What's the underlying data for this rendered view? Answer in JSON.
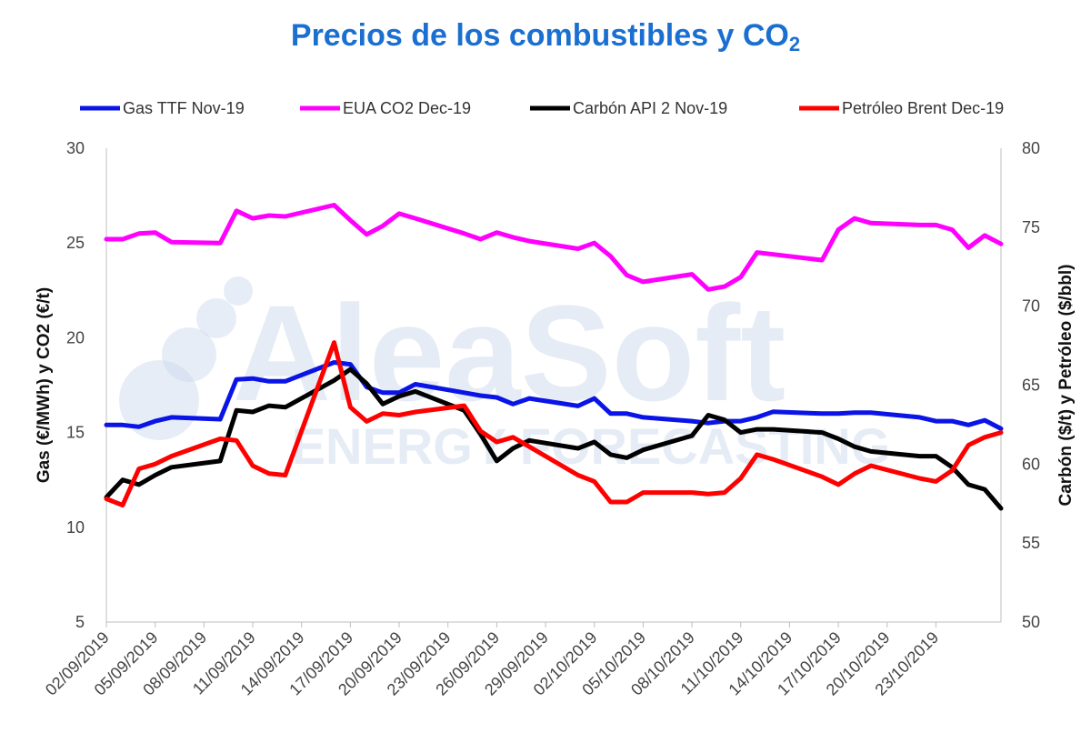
{
  "chart_data": {
    "type": "line",
    "title_main": "Precios de los combustibles y CO",
    "title_sub": "2",
    "ylabel_left": "Gas (€/MWh) y CO2 (€/t)",
    "ylabel_right": "Carbón ($/t) y Petróleo ($/bbl)",
    "ylim_left": [
      5,
      30
    ],
    "ylim_right": [
      50,
      80
    ],
    "yticks_left": [
      "5",
      "10",
      "15",
      "20",
      "25",
      "30"
    ],
    "yticks_right": [
      "50",
      "55",
      "60",
      "65",
      "70",
      "75",
      "80"
    ],
    "grid": false,
    "legend_position": "top",
    "x_start": "2019-09-02",
    "x_end": "2019-10-27",
    "xticks": [
      "02/09/2019",
      "05/09/2019",
      "08/09/2019",
      "11/09/2019",
      "14/09/2019",
      "17/09/2019",
      "20/09/2019",
      "23/09/2019",
      "26/09/2019",
      "29/09/2019",
      "02/10/2019",
      "05/10/2019",
      "08/10/2019",
      "11/10/2019",
      "14/10/2019",
      "17/10/2019",
      "20/10/2019",
      "23/10/2019"
    ],
    "series": [
      {
        "name": "Gas TTF Nov-19",
        "axis": "left",
        "color": "#0a14e6",
        "points": [
          [
            "2019-09-02",
            15.4
          ],
          [
            "2019-09-03",
            15.4
          ],
          [
            "2019-09-04",
            15.3
          ],
          [
            "2019-09-05",
            15.6
          ],
          [
            "2019-09-06",
            15.8
          ],
          [
            "2019-09-09",
            15.7
          ],
          [
            "2019-09-10",
            17.8
          ],
          [
            "2019-09-11",
            17.85
          ],
          [
            "2019-09-12",
            17.7
          ],
          [
            "2019-09-13",
            17.7
          ],
          [
            "2019-09-16",
            18.7
          ],
          [
            "2019-09-17",
            18.6
          ],
          [
            "2019-09-18",
            17.4
          ],
          [
            "2019-09-19",
            17.1
          ],
          [
            "2019-09-20",
            17.1
          ],
          [
            "2019-09-21",
            17.55
          ],
          [
            "2019-09-24",
            17.1
          ],
          [
            "2019-09-25",
            16.95
          ],
          [
            "2019-09-26",
            16.85
          ],
          [
            "2019-09-27",
            16.5
          ],
          [
            "2019-09-28",
            16.8
          ],
          [
            "2019-10-01",
            16.4
          ],
          [
            "2019-10-02",
            16.8
          ],
          [
            "2019-10-03",
            16.0
          ],
          [
            "2019-10-04",
            16.0
          ],
          [
            "2019-10-05",
            15.8
          ],
          [
            "2019-10-08",
            15.6
          ],
          [
            "2019-10-09",
            15.5
          ],
          [
            "2019-10-10",
            15.6
          ],
          [
            "2019-10-11",
            15.6
          ],
          [
            "2019-10-12",
            15.8
          ],
          [
            "2019-10-13",
            16.1
          ],
          [
            "2019-10-16",
            16.0
          ],
          [
            "2019-10-17",
            16.0
          ],
          [
            "2019-10-18",
            16.05
          ],
          [
            "2019-10-19",
            16.05
          ],
          [
            "2019-10-22",
            15.8
          ],
          [
            "2019-10-23",
            15.6
          ],
          [
            "2019-10-24",
            15.6
          ],
          [
            "2019-10-25",
            15.4
          ],
          [
            "2019-10-26",
            15.65
          ],
          [
            "2019-10-27",
            15.2
          ]
        ]
      },
      {
        "name": "EUA CO2 Dec-19",
        "axis": "left",
        "color": "#ff00ff",
        "points": [
          [
            "2019-09-02",
            25.2
          ],
          [
            "2019-09-03",
            25.2
          ],
          [
            "2019-09-04",
            25.5
          ],
          [
            "2019-09-05",
            25.55
          ],
          [
            "2019-09-06",
            25.05
          ],
          [
            "2019-09-09",
            25.0
          ],
          [
            "2019-09-10",
            26.7
          ],
          [
            "2019-09-11",
            26.3
          ],
          [
            "2019-09-12",
            26.45
          ],
          [
            "2019-09-13",
            26.4
          ],
          [
            "2019-09-16",
            27.0
          ],
          [
            "2019-09-17",
            26.2
          ],
          [
            "2019-09-18",
            25.45
          ],
          [
            "2019-09-19",
            25.9
          ],
          [
            "2019-09-20",
            26.55
          ],
          [
            "2019-09-21",
            26.3
          ],
          [
            "2019-09-24",
            25.5
          ],
          [
            "2019-09-25",
            25.2
          ],
          [
            "2019-09-26",
            25.55
          ],
          [
            "2019-09-27",
            25.3
          ],
          [
            "2019-09-28",
            25.1
          ],
          [
            "2019-10-01",
            24.7
          ],
          [
            "2019-10-02",
            25.0
          ],
          [
            "2019-10-03",
            24.3
          ],
          [
            "2019-10-04",
            23.3
          ],
          [
            "2019-10-05",
            22.95
          ],
          [
            "2019-10-08",
            23.35
          ],
          [
            "2019-10-09",
            22.55
          ],
          [
            "2019-10-10",
            22.7
          ],
          [
            "2019-10-11",
            23.2
          ],
          [
            "2019-10-12",
            24.5
          ],
          [
            "2019-10-13",
            24.4
          ],
          [
            "2019-10-16",
            24.1
          ],
          [
            "2019-10-17",
            25.7
          ],
          [
            "2019-10-18",
            26.3
          ],
          [
            "2019-10-19",
            26.05
          ],
          [
            "2019-10-22",
            25.95
          ],
          [
            "2019-10-23",
            25.95
          ],
          [
            "2019-10-24",
            25.7
          ],
          [
            "2019-10-25",
            24.75
          ],
          [
            "2019-10-26",
            25.4
          ],
          [
            "2019-10-27",
            24.95
          ]
        ]
      },
      {
        "name": "Carbón API 2 Nov-19",
        "axis": "right",
        "color": "#000000",
        "points": [
          [
            "2019-09-02",
            57.9
          ],
          [
            "2019-09-03",
            59.0
          ],
          [
            "2019-09-04",
            58.7
          ],
          [
            "2019-09-05",
            59.3
          ],
          [
            "2019-09-06",
            59.8
          ],
          [
            "2019-09-09",
            60.2
          ],
          [
            "2019-09-10",
            63.4
          ],
          [
            "2019-09-11",
            63.3
          ],
          [
            "2019-09-12",
            63.7
          ],
          [
            "2019-09-13",
            63.6
          ],
          [
            "2019-09-16",
            65.3
          ],
          [
            "2019-09-17",
            66.0
          ],
          [
            "2019-09-18",
            65.1
          ],
          [
            "2019-09-19",
            63.8
          ],
          [
            "2019-09-20",
            64.3
          ],
          [
            "2019-09-21",
            64.6
          ],
          [
            "2019-09-24",
            63.4
          ],
          [
            "2019-09-25",
            61.9
          ],
          [
            "2019-09-26",
            60.2
          ],
          [
            "2019-09-27",
            61.0
          ],
          [
            "2019-09-28",
            61.5
          ],
          [
            "2019-10-01",
            61.0
          ],
          [
            "2019-10-02",
            61.4
          ],
          [
            "2019-10-03",
            60.6
          ],
          [
            "2019-10-04",
            60.4
          ],
          [
            "2019-10-05",
            60.9
          ],
          [
            "2019-10-08",
            61.8
          ],
          [
            "2019-10-09",
            63.1
          ],
          [
            "2019-10-10",
            62.8
          ],
          [
            "2019-10-11",
            62.0
          ],
          [
            "2019-10-12",
            62.2
          ],
          [
            "2019-10-13",
            62.2
          ],
          [
            "2019-10-16",
            62.0
          ],
          [
            "2019-10-17",
            61.6
          ],
          [
            "2019-10-18",
            61.1
          ],
          [
            "2019-10-19",
            60.8
          ],
          [
            "2019-10-22",
            60.5
          ],
          [
            "2019-10-23",
            60.5
          ],
          [
            "2019-10-24",
            59.8
          ],
          [
            "2019-10-25",
            58.7
          ],
          [
            "2019-10-26",
            58.4
          ],
          [
            "2019-10-27",
            57.2
          ]
        ]
      },
      {
        "name": "Petróleo Brent Dec-19",
        "axis": "right",
        "color": "#ff0000",
        "points": [
          [
            "2019-09-02",
            57.8
          ],
          [
            "2019-09-03",
            57.4
          ],
          [
            "2019-09-04",
            59.7
          ],
          [
            "2019-09-05",
            60.0
          ],
          [
            "2019-09-06",
            60.5
          ],
          [
            "2019-09-09",
            61.6
          ],
          [
            "2019-09-10",
            61.5
          ],
          [
            "2019-09-11",
            59.9
          ],
          [
            "2019-09-12",
            59.4
          ],
          [
            "2019-09-13",
            59.3
          ],
          [
            "2019-09-16",
            67.7
          ],
          [
            "2019-09-17",
            63.6
          ],
          [
            "2019-09-18",
            62.7
          ],
          [
            "2019-09-19",
            63.2
          ],
          [
            "2019-09-20",
            63.1
          ],
          [
            "2019-09-21",
            63.3
          ],
          [
            "2019-09-24",
            63.7
          ],
          [
            "2019-09-25",
            62.1
          ],
          [
            "2019-09-26",
            61.4
          ],
          [
            "2019-09-27",
            61.7
          ],
          [
            "2019-09-28",
            61.1
          ],
          [
            "2019-10-01",
            59.3
          ],
          [
            "2019-10-02",
            58.9
          ],
          [
            "2019-10-03",
            57.6
          ],
          [
            "2019-10-04",
            57.6
          ],
          [
            "2019-10-05",
            58.2
          ],
          [
            "2019-10-08",
            58.2
          ],
          [
            "2019-10-09",
            58.1
          ],
          [
            "2019-10-10",
            58.2
          ],
          [
            "2019-10-11",
            59.1
          ],
          [
            "2019-10-12",
            60.6
          ],
          [
            "2019-10-13",
            60.3
          ],
          [
            "2019-10-16",
            59.2
          ],
          [
            "2019-10-17",
            58.7
          ],
          [
            "2019-10-18",
            59.4
          ],
          [
            "2019-10-19",
            59.9
          ],
          [
            "2019-10-22",
            59.1
          ],
          [
            "2019-10-23",
            58.9
          ],
          [
            "2019-10-24",
            59.6
          ],
          [
            "2019-10-25",
            61.2
          ],
          [
            "2019-10-26",
            61.7
          ],
          [
            "2019-10-27",
            62.0
          ]
        ]
      }
    ]
  },
  "watermark": {
    "brand": "AleaSoft",
    "tagline": "ENERGY FORECASTING"
  }
}
